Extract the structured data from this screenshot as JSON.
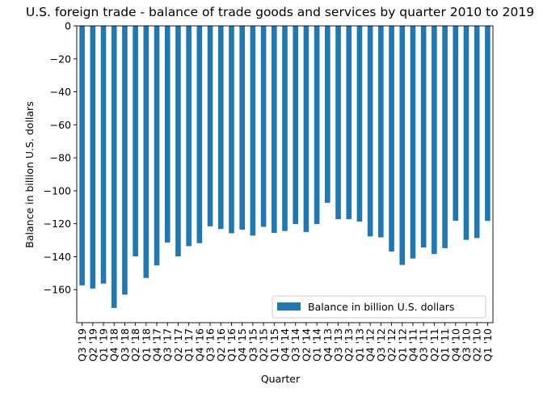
{
  "chart_data": {
    "type": "bar",
    "title": "U.S. foreign trade - balance of trade goods and services by quarter 2010 to 2019",
    "xlabel": "Quarter",
    "ylabel": "Balance in billion U.S. dollars",
    "ylim": [
      -180,
      0
    ],
    "yticks": [
      0,
      -20,
      -40,
      -60,
      -80,
      -100,
      -120,
      -140,
      -160
    ],
    "ytick_labels": [
      "0",
      "−20",
      "−40",
      "−60",
      "−80",
      "−100",
      "−120",
      "−140",
      "−160"
    ],
    "grid": false,
    "legend_position": "lower-right",
    "bar_color": "#1f77b4",
    "categories": [
      "Q3 '19",
      "Q2 '19",
      "Q1 '19",
      "Q4 '18",
      "Q3 '18",
      "Q2 '18",
      "Q1 '18",
      "Q4 '17",
      "Q3 '17",
      "Q2 '17",
      "Q1 '17",
      "Q4 '16",
      "Q3 '16",
      "Q2 '16",
      "Q1 '16",
      "Q4 '15",
      "Q3 '15",
      "Q2 '15",
      "Q1 '15",
      "Q4 '14",
      "Q3 '14",
      "Q2 '14",
      "Q1 '14",
      "Q4 '13",
      "Q3 '13",
      "Q2 '13",
      "Q1 '13",
      "Q4 '12",
      "Q3 '12",
      "Q2 '12",
      "Q1 '12",
      "Q4 '11",
      "Q3 '11",
      "Q2 '11",
      "Q1 '11",
      "Q4 '10",
      "Q3 '10",
      "Q2 '10",
      "Q1 '10"
    ],
    "series": [
      {
        "name": "Balance in billion U.S. dollars",
        "values": [
          -157.4,
          -159.3,
          -156.3,
          -171.1,
          -163.0,
          -139.8,
          -152.9,
          -145.3,
          -131.4,
          -139.8,
          -133.6,
          -131.8,
          -121.6,
          -123.2,
          -125.8,
          -123.6,
          -127.2,
          -121.9,
          -125.6,
          -124.4,
          -120.2,
          -125.0,
          -120.2,
          -107.3,
          -117.2,
          -117.2,
          -118.7,
          -127.7,
          -128.3,
          -136.9,
          -145.0,
          -141.1,
          -134.4,
          -138.4,
          -134.8,
          -118.2,
          -129.8,
          -128.7,
          -118.3
        ]
      }
    ]
  }
}
